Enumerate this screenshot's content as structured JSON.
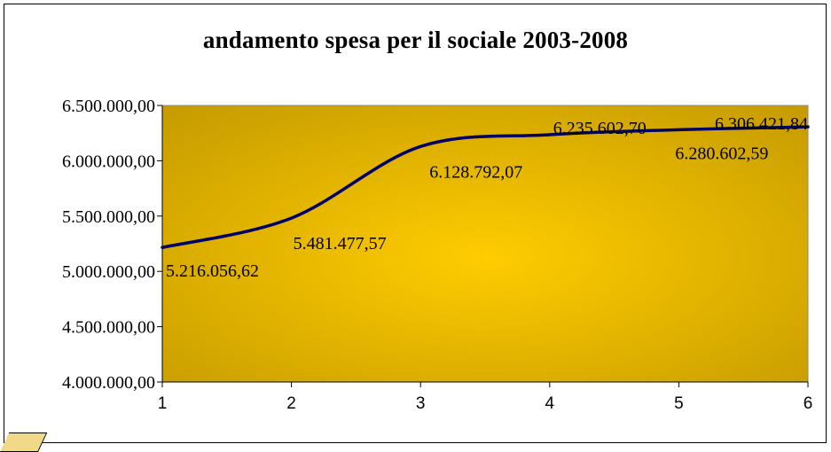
{
  "chart_data": {
    "type": "line",
    "title": "andamento spesa per il sociale 2003-2008",
    "xlabel": "",
    "ylabel": "",
    "categories": [
      "1",
      "2",
      "3",
      "4",
      "5",
      "6"
    ],
    "ylim": [
      4000000,
      6500000
    ],
    "yticks": [
      4000000,
      4500000,
      5000000,
      5500000,
      6000000,
      6500000
    ],
    "ytick_labels": [
      "4.000.000,00",
      "4.500.000,00",
      "5.000.000,00",
      "5.500.000,00",
      "6.000.000,00",
      "6.500.000,00"
    ],
    "series": [
      {
        "values": [
          5216056.62,
          5481477.57,
          6128792.07,
          6235602.7,
          6280602.59,
          6306421.84
        ],
        "labels": [
          "5.216.056,62",
          "5.481.477,57",
          "6.128.792,07",
          "6.235.602,70",
          "6.280.602,59",
          "6.306.421,84"
        ],
        "color": "#000066"
      }
    ],
    "plot_background": [
      "#ffcc00",
      "#c49a00"
    ],
    "grid": false,
    "legend": "none"
  }
}
